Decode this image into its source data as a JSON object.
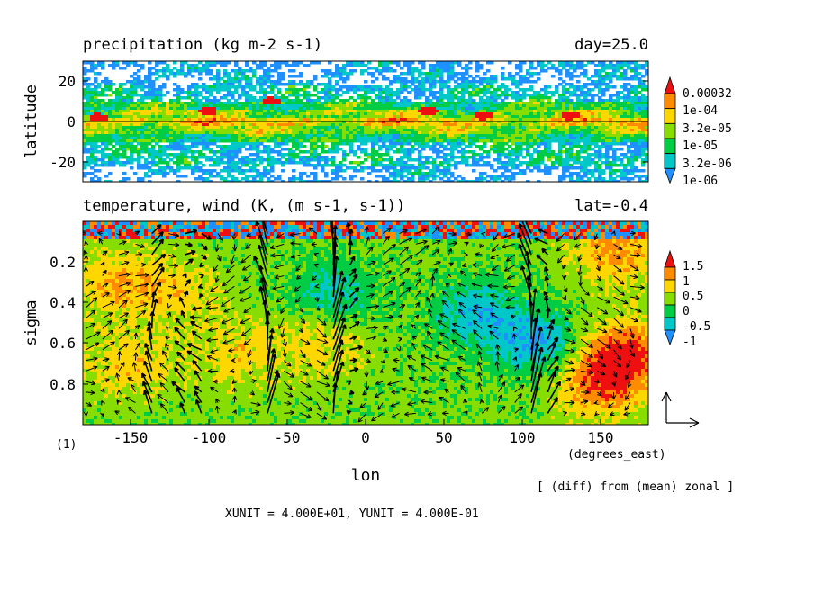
{
  "colors": {
    "bg": "#ffffff",
    "axis": "#000000",
    "vector": "#000000"
  },
  "chart_data": [
    {
      "type": "heatmap",
      "title": "precipitation (kg m-2 s-1)",
      "annotation": "day=25.0",
      "ylabel": "latitude",
      "xlim": [
        -180,
        180
      ],
      "ylim": [
        -30,
        30
      ],
      "yticks": [
        -20,
        0,
        20
      ],
      "equator_line": true,
      "colorbar": {
        "levels": [
          "1e-06",
          "3.2e-06",
          "1e-05",
          "3.2e-05",
          "1e-04",
          "0.00032"
        ],
        "colors": [
          "#ffffff",
          "#1e90ff",
          "#00c8c8",
          "#00cc44",
          "#88dd00",
          "#ffd700",
          "#ff8c00",
          "#ee1010"
        ]
      },
      "zonal_profile": [
        {
          "lat": -28,
          "band": 1
        },
        {
          "lat": -24,
          "band": 1
        },
        {
          "lat": -20,
          "band": 2
        },
        {
          "lat": -16,
          "band": 2
        },
        {
          "lat": -12,
          "band": 2
        },
        {
          "lat": -8,
          "band": 3
        },
        {
          "lat": -4,
          "band": 4
        },
        {
          "lat": 0,
          "band": 5
        },
        {
          "lat": 4,
          "band": 4
        },
        {
          "lat": 8,
          "band": 3
        },
        {
          "lat": 12,
          "band": 2
        },
        {
          "lat": 16,
          "band": 2
        },
        {
          "lat": 20,
          "band": 1
        },
        {
          "lat": 24,
          "band": 1
        },
        {
          "lat": 28,
          "band": 1
        }
      ],
      "maxima": [
        {
          "lon": -100,
          "lat": 5
        },
        {
          "lon": 40,
          "lat": 5
        },
        {
          "lon": 75,
          "lat": 3
        },
        {
          "lon": 130,
          "lat": 3
        },
        {
          "lon": -60,
          "lat": 10
        },
        {
          "lon": -170,
          "lat": 2
        }
      ]
    },
    {
      "type": "heatmap",
      "title": "temperature, wind (K, (m s-1, s-1))",
      "annotation": "lat=-0.4",
      "ylabel": "sigma",
      "xlabel": "lon",
      "xunits": "(degrees_east)",
      "xlim": [
        -180,
        180
      ],
      "ylim": [
        1.0,
        0.0
      ],
      "xticks": [
        -150,
        -100,
        -50,
        0,
        50,
        100,
        150
      ],
      "yticks": [
        0.2,
        0.4,
        0.6,
        0.8
      ],
      "colorbar": {
        "levels": [
          "-1",
          "-0.5",
          "0",
          "0.5",
          "1",
          "1.5"
        ],
        "colors": [
          "#1e90ff",
          "#00c8c8",
          "#00cc44",
          "#88dd00",
          "#ffd700",
          "#ff8c00",
          "#ee1010"
        ]
      },
      "anomaly_centers": [
        {
          "lon": 70,
          "sigma": 0.45,
          "value": -1.0
        },
        {
          "lon": 110,
          "sigma": 0.6,
          "value": -1.2
        },
        {
          "lon": -20,
          "sigma": 0.35,
          "value": -0.8
        },
        {
          "lon": -160,
          "sigma": 0.3,
          "value": 0.8
        },
        {
          "lon": -120,
          "sigma": 0.35,
          "value": 0.6
        },
        {
          "lon": 165,
          "sigma": 0.65,
          "value": 1.5
        },
        {
          "lon": 150,
          "sigma": 0.8,
          "value": 1.2
        },
        {
          "lon": 160,
          "sigma": 0.15,
          "value": 1.0
        },
        {
          "lon": -150,
          "sigma": 0.7,
          "value": 0.7
        },
        {
          "lon": -80,
          "sigma": 0.65,
          "value": 0.6
        },
        {
          "lon": -30,
          "sigma": 0.6,
          "value": 0.6
        }
      ],
      "vectors": {
        "xunit": "4.000E+01",
        "yunit": "4.000E-01",
        "strong_updrafts_lon": [
          -140,
          -110,
          -62,
          -20,
          -15,
          105,
          112
        ]
      }
    }
  ],
  "frame_label": "(1)",
  "xunits_label": "(degrees_east)",
  "xlabel_bottom": "lon",
  "diff_note": "[ (diff) from (mean) zonal ]",
  "units_note": "XUNIT = 4.000E+01, YUNIT = 4.000E-01",
  "text": {
    "p1_title": "precipitation (kg m-2 s-1)",
    "p1_annot": "day=25.0",
    "p1_ylabel": "latitude",
    "p1_y_20": "20",
    "p1_y_0": "0",
    "p1_y_m20": "-20",
    "p2_title": "temperature, wind (K, (m s-1, s-1))",
    "p2_annot": "lat=-0.4",
    "p2_ylabel": "sigma",
    "p2_y_02": "0.2",
    "p2_y_04": "0.4",
    "p2_y_06": "0.6",
    "p2_y_08": "0.8",
    "x_m150": "-150",
    "x_m100": "-100",
    "x_m50": "-50",
    "x_0": "0",
    "x_50": "50",
    "x_100": "100",
    "x_150": "150",
    "cb1_0": "0.00032",
    "cb1_1": "1e-04",
    "cb1_2": "3.2e-05",
    "cb1_3": "1e-05",
    "cb1_4": "3.2e-06",
    "cb1_5": "1e-06",
    "cb2_0": "1.5",
    "cb2_1": "1",
    "cb2_2": "0.5",
    "cb2_3": "0",
    "cb2_4": "-0.5",
    "cb2_5": "-1"
  }
}
